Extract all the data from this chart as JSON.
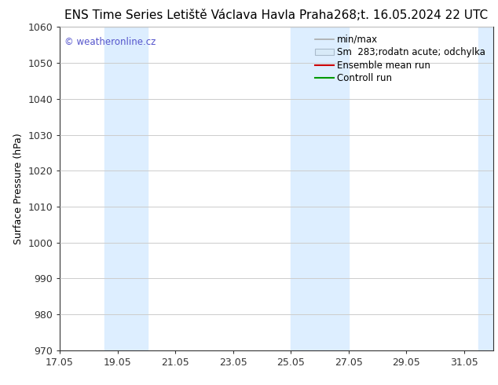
{
  "title_left": "ENS Time Series Letiště Václava Havla Praha",
  "title_right": "268;t. 16.05.2024 22 UTC",
  "ylabel": "Surface Pressure (hPa)",
  "xlim": [
    17.05,
    32.05
  ],
  "ylim": [
    970,
    1060
  ],
  "yticks": [
    970,
    980,
    990,
    1000,
    1010,
    1020,
    1030,
    1040,
    1050,
    1060
  ],
  "xticks": [
    17.05,
    19.05,
    21.05,
    23.05,
    25.05,
    27.05,
    29.05,
    31.05
  ],
  "xtick_labels": [
    "17.05",
    "19.05",
    "21.05",
    "23.05",
    "25.05",
    "27.05",
    "29.05",
    "31.05"
  ],
  "watermark": "© weatheronline.cz",
  "watermark_color": "#5555cc",
  "bg_color": "#ffffff",
  "plot_bg_color": "#ffffff",
  "shaded_bands": [
    {
      "x_start": 18.6,
      "x_end": 20.1
    },
    {
      "x_start": 25.05,
      "x_end": 27.05
    },
    {
      "x_start": 31.55,
      "x_end": 32.05
    }
  ],
  "shaded_color": "#ddeeff",
  "grid_color": "#cccccc",
  "tick_color": "#333333",
  "font_size": 9,
  "title_font_size": 11,
  "legend_fontsize": 8.5
}
